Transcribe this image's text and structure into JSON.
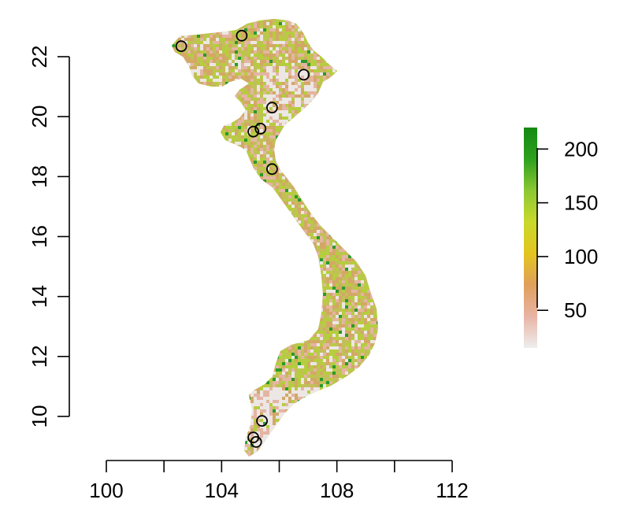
{
  "map": {
    "x_axis": {
      "range": [
        100,
        112
      ],
      "ticks": [
        100,
        102,
        104,
        106,
        108,
        110,
        112
      ],
      "labels": [
        "100",
        "",
        "104",
        "",
        "108",
        "",
        "112"
      ]
    },
    "y_axis": {
      "range": [
        10,
        22
      ],
      "ticks": [
        10,
        12,
        14,
        16,
        18,
        20,
        22
      ],
      "labels": [
        "10",
        "12",
        "14",
        "16",
        "18",
        "20",
        "22"
      ]
    },
    "legend": {
      "ticks": [
        50,
        100,
        150,
        200
      ],
      "labels": [
        "50",
        "100",
        "150",
        "200"
      ],
      "range": [
        15,
        220
      ],
      "colors": [
        "#eeeeee",
        "#e8b4a5",
        "#e09f5c",
        "#e3c51e",
        "#c9d92c",
        "#8bc833",
        "#2ea11e",
        "#148a14"
      ]
    },
    "raster_colors": {
      "light": "#ece7e4",
      "pink": "#e4b5a3",
      "tan": "#d3a866",
      "olive": "#c2bf5a",
      "lime": "#b5cd3e",
      "green": "#2a9a2a"
    },
    "sites": [
      {
        "lon": 102.6,
        "lat": 22.35
      },
      {
        "lon": 104.7,
        "lat": 22.7
      },
      {
        "lon": 106.85,
        "lat": 21.4
      },
      {
        "lon": 105.75,
        "lat": 20.3
      },
      {
        "lon": 105.35,
        "lat": 19.6
      },
      {
        "lon": 105.1,
        "lat": 19.5
      },
      {
        "lon": 105.75,
        "lat": 18.25
      },
      {
        "lon": 105.4,
        "lat": 9.85
      },
      {
        "lon": 105.1,
        "lat": 9.3
      },
      {
        "lon": 105.2,
        "lat": 9.15
      }
    ]
  }
}
